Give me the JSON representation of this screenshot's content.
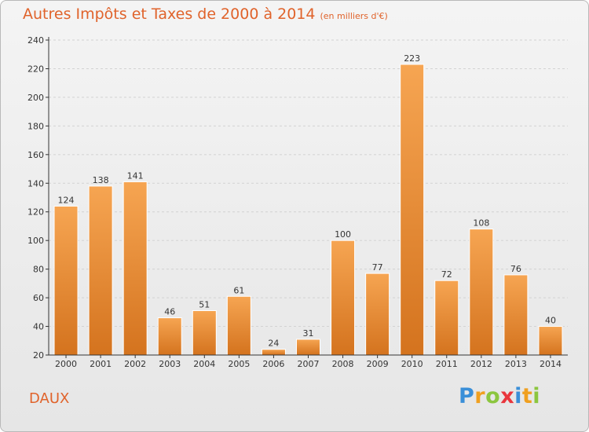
{
  "title": "Autres Impôts et Taxes de 2000 à 2014",
  "subtitle": "(en milliers d'€)",
  "place": "DAUX",
  "logo": {
    "text": "Proxiti",
    "letters": [
      {
        "ch": "P",
        "color": "#3a8fd8"
      },
      {
        "ch": "r",
        "color": "#f0a020"
      },
      {
        "ch": "o",
        "color": "#8cc63f"
      },
      {
        "ch": "x",
        "color": "#e9363d"
      },
      {
        "ch": "i",
        "color": "#3a8fd8"
      },
      {
        "ch": "t",
        "color": "#f0a020"
      },
      {
        "ch": "i",
        "color": "#8cc63f"
      }
    ]
  },
  "colors": {
    "bar_light": "#f6a552",
    "bar_dark": "#d4731e",
    "accent": "#e0632b",
    "axis": "#333333",
    "grid": "#d2d2d2"
  },
  "chart_data": {
    "type": "bar",
    "categories": [
      "2000",
      "2001",
      "2002",
      "2003",
      "2004",
      "2005",
      "2006",
      "2007",
      "2008",
      "2009",
      "2010",
      "2011",
      "2012",
      "2013",
      "2014"
    ],
    "values": [
      124,
      138,
      141,
      46,
      51,
      61,
      24,
      31,
      100,
      77,
      223,
      72,
      108,
      76,
      40
    ],
    "ylim": [
      20,
      240
    ],
    "yticks": [
      20,
      40,
      60,
      80,
      100,
      120,
      140,
      160,
      180,
      200,
      220,
      240
    ],
    "grid": true,
    "legend": "none"
  }
}
